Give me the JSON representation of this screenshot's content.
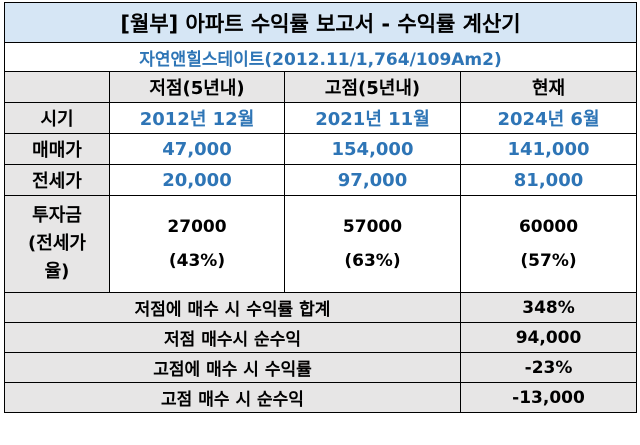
{
  "title": "[월부] 아파트 수익률 보고서 - 수익률 계산기",
  "subtitle": "자연앤힐스테이트(2012.11/1,764/109Am2)",
  "columns": [
    "저점(5년내)",
    "고점(5년내)",
    "현재"
  ],
  "rows": [
    {
      "label": "시기",
      "values": [
        "2012년 12월",
        "2021년 11월",
        "2024년 6월"
      ]
    },
    {
      "label": "매매가",
      "values": [
        "47,000",
        "154,000",
        "141,000"
      ]
    },
    {
      "label": "전세가",
      "values": [
        "20,000",
        "97,000",
        "81,000"
      ]
    }
  ],
  "invest": {
    "label_lines": [
      "투자금",
      "(전세가",
      "율)"
    ],
    "values": [
      {
        "amount": "27000",
        "ratio": "(43%)"
      },
      {
        "amount": "57000",
        "ratio": "(63%)"
      },
      {
        "amount": "60000",
        "ratio": "(57%)"
      }
    ]
  },
  "summary": [
    {
      "label": "저점에 매수 시 수익률 합계",
      "value": "348%"
    },
    {
      "label": "저점 매수시 순수익",
      "value": "94,000"
    },
    {
      "label": "고점에 매수 시 수익률",
      "value": "-23%"
    },
    {
      "label": "고점 매수 시 순수익",
      "value": "-13,000"
    }
  ],
  "colors": {
    "title_bg": "#d6e6f5",
    "label_bg": "#e7e6e6",
    "value_blue": "#2e75b6"
  }
}
